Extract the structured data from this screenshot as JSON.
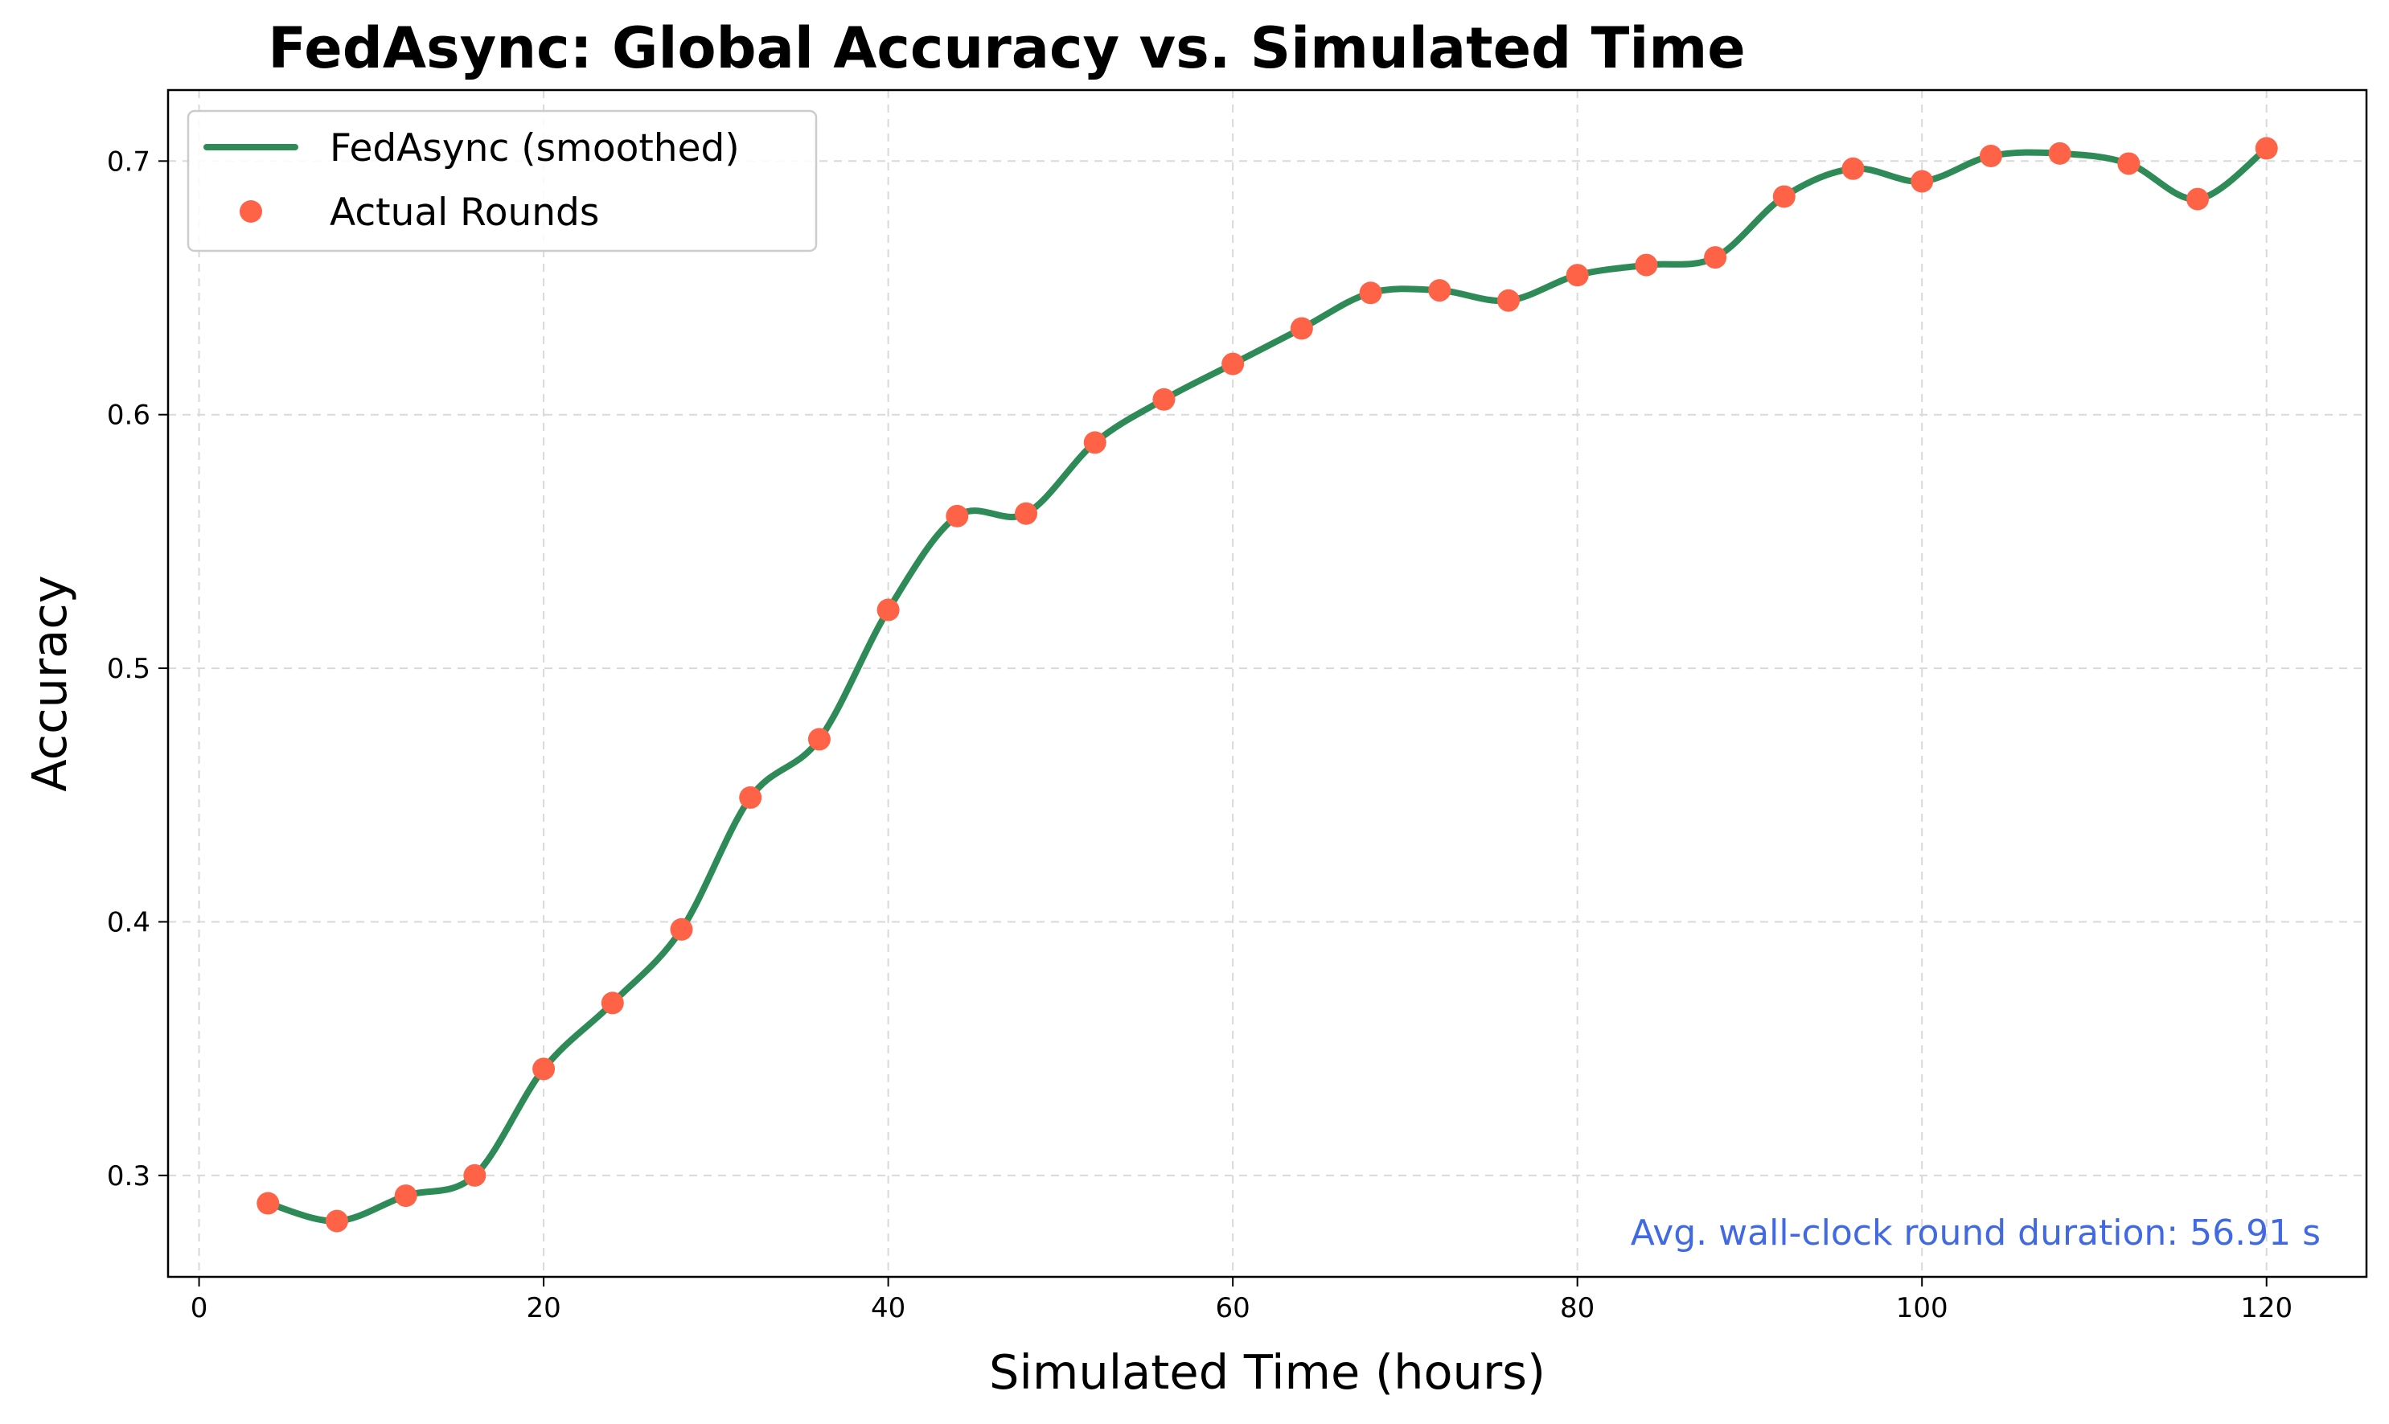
{
  "colors": {
    "line": "#2e8b57",
    "points": "#ff6347",
    "annotation": "#4169e1",
    "grid": "#d9d9d9"
  },
  "chart_data": {
    "type": "line",
    "title": "FedAsync: Global Accuracy vs. Simulated Time",
    "xlabel": "Simulated Time (hours)",
    "ylabel": "Accuracy",
    "xlim": [
      -1.8,
      125.8
    ],
    "ylim": [
      0.26,
      0.728
    ],
    "xticks": [
      0,
      20,
      40,
      60,
      80,
      100,
      120
    ],
    "yticks": [
      0.3,
      0.4,
      0.5,
      0.6,
      0.7
    ],
    "xtick_labels": [
      "0",
      "20",
      "40",
      "60",
      "80",
      "100",
      "120"
    ],
    "ytick_labels": [
      "0.3",
      "0.4",
      "0.5",
      "0.6",
      "0.7"
    ],
    "grid": true,
    "legend_position": "upper left",
    "series": [
      {
        "name": "FedAsync (smoothed)",
        "style": "line",
        "x": [
          4,
          8,
          12,
          16,
          20,
          24,
          28,
          32,
          36,
          40,
          44,
          48,
          52,
          56,
          60,
          64,
          68,
          72,
          76,
          80,
          84,
          88,
          92,
          96,
          100,
          104,
          108,
          112,
          116,
          120
        ],
        "y": [
          0.289,
          0.282,
          0.292,
          0.3,
          0.342,
          0.368,
          0.397,
          0.449,
          0.472,
          0.523,
          0.56,
          0.561,
          0.589,
          0.606,
          0.62,
          0.634,
          0.648,
          0.649,
          0.645,
          0.655,
          0.659,
          0.662,
          0.686,
          0.697,
          0.692,
          0.702,
          0.703,
          0.699,
          0.685,
          0.705
        ]
      },
      {
        "name": "Actual Rounds",
        "style": "points",
        "x": [
          4,
          8,
          12,
          16,
          20,
          24,
          28,
          32,
          36,
          40,
          44,
          48,
          52,
          56,
          60,
          64,
          68,
          72,
          76,
          80,
          84,
          88,
          92,
          96,
          100,
          104,
          108,
          112,
          116,
          120
        ],
        "y": [
          0.289,
          0.282,
          0.292,
          0.3,
          0.342,
          0.368,
          0.397,
          0.449,
          0.472,
          0.523,
          0.56,
          0.561,
          0.589,
          0.606,
          0.62,
          0.634,
          0.648,
          0.649,
          0.645,
          0.655,
          0.659,
          0.662,
          0.686,
          0.697,
          0.692,
          0.702,
          0.703,
          0.699,
          0.685,
          0.705
        ]
      }
    ],
    "annotation": "Avg. wall-clock round duration: 56.91 s"
  }
}
